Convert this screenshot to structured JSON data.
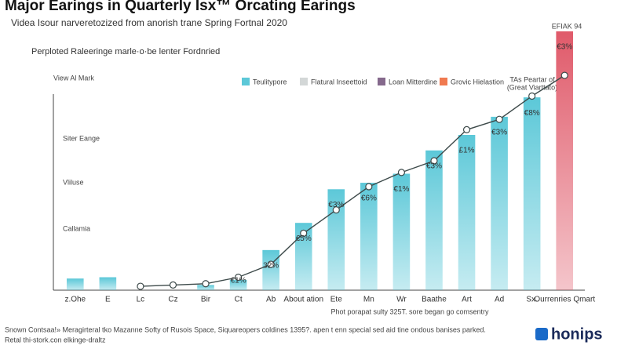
{
  "chart_data": {
    "type": "bar",
    "title": "Major Earings in Quarterly Isx™ Orcating Earings",
    "subtitle": "Videa Isour narveretozized from anorish trane Spring Fortnal 2020",
    "annotation": "Perploted Raleeringe marle·o·be lenter Fordnried",
    "side_labels": [
      "View Al Mark",
      "Siter Eange",
      "Vliluse",
      "Callamia"
    ],
    "right_note": [
      "TAs Peartar of",
      "(Great Viarttato)"
    ],
    "top_label": "EFIAK 94",
    "xlabel": "Phot porapat sulty 325T. sore began go comsentry",
    "footer": [
      "Snown Contsaa!» Meragirteral tko Mazanne Softy of Rusois Space, Siquareopers coldines 1395?. apen t enn special sed aid tine ondous banises parked.",
      "Retal thi-stork.con elkinge-draltz"
    ],
    "logo": "honips",
    "legend": [
      {
        "name": "Teulitypore",
        "color": "#5cc8d8"
      },
      {
        "name": "Flatural Inseettoid",
        "color": "#d3d7d7"
      },
      {
        "name": "Loan Mitterdine",
        "color": "#85698c"
      },
      {
        "name": "Grovic Hielastion",
        "color": "#f07a50"
      }
    ],
    "categories": [
      "z.Ohe",
      "E",
      "Lc",
      "Cz",
      "Bir",
      "Ct",
      "Ab",
      "About ation",
      "Ete",
      "Mn",
      "Wr",
      "Baathe",
      "Art",
      "Ad",
      "Sx.",
      "Ourrenries Qmart"
    ],
    "series": [
      {
        "name": "Teulitypore",
        "values": [
          4.5,
          5,
          0,
          0,
          2,
          4,
          15.5,
          26,
          39,
          41.5,
          45,
          54,
          60,
          67,
          74.5,
          100
        ],
        "colors": [
          "#5cc8d8",
          "#5cc8d8",
          "#5cc8d8",
          "#5cc8d8",
          "#5cc8d8",
          "#5cc8d8",
          "#5cc8d8",
          "#5cc8d8",
          "#5cc8d8",
          "#5cc8d8",
          "#5cc8d8",
          "#5cc8d8",
          "#5cc8d8",
          "#5cc8d8",
          "#5cc8d8",
          "#e05a6a"
        ]
      },
      {
        "name": "Grovic Hielastion",
        "type": "line",
        "color": "#3d4a4a",
        "values": [
          null,
          null,
          1.5,
          2,
          2.5,
          5,
          10,
          22,
          31,
          40,
          45.5,
          50,
          62,
          66,
          75,
          83
        ]
      }
    ],
    "bar_annotations": [
      null,
      null,
      null,
      null,
      null,
      "€1%",
      "32%",
      "€5%",
      "€3%",
      "€6%",
      "€1%",
      "€3%",
      "£1%",
      "€3%",
      "€8%",
      "€3%"
    ],
    "ylim": [
      0,
      100
    ]
  }
}
